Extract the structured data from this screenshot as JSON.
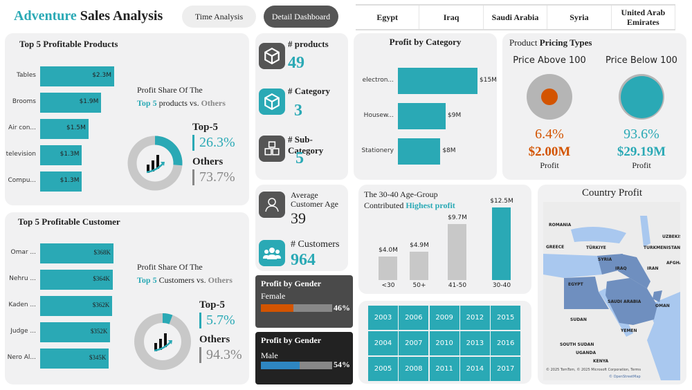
{
  "header": {
    "title_accent": "Adventure",
    "title_rest": "Sales Analysis",
    "nav": [
      "Time Analysis",
      "Detail Dashboard"
    ],
    "active_nav": "Detail Dashboard"
  },
  "country_slicer": [
    "Egypt",
    "Iraq",
    "Saudi Arabia",
    "Syria",
    "United Arab Emirates"
  ],
  "top_products": {
    "title": "Top 5 Profitable Products",
    "items": [
      {
        "label": "Tables",
        "value": 2.3,
        "text": "$2.3M"
      },
      {
        "label": "Brooms",
        "value": 1.9,
        "text": "$1.9M"
      },
      {
        "label": "Air con...",
        "value": 1.5,
        "text": "$1.5M"
      },
      {
        "label": "television",
        "value": 1.3,
        "text": "$1.3M"
      },
      {
        "label": "Compu...",
        "value": 1.3,
        "text": "$1.3M"
      }
    ],
    "share_line1": "Profit Share Of The",
    "share_top": "Top 5",
    "share_mid": "products vs.",
    "share_others": "Others",
    "top_label": "Top-5",
    "top_pct": "26.3%",
    "top_value": 26.3,
    "others_label": "Others",
    "others_pct": "73.7%"
  },
  "top_customers": {
    "title": "Top 5 Profitable Customer",
    "items": [
      {
        "label": "Omar ...",
        "value": 368,
        "text": "$368K"
      },
      {
        "label": "Nehru ...",
        "value": 364,
        "text": "$364K"
      },
      {
        "label": "Kaden ...",
        "value": 362,
        "text": "$362K"
      },
      {
        "label": "Judge ...",
        "value": 352,
        "text": "$352K"
      },
      {
        "label": "Nero Al...",
        "value": 345,
        "text": "$345K"
      }
    ],
    "share_line1": "Profit Share Of The",
    "share_top": "Top 5",
    "share_mid": "Customers vs.",
    "share_others": "Others",
    "top_label": "Top-5",
    "top_pct": "5.7%",
    "top_value": 5.7,
    "others_label": "Others",
    "others_pct": "94.3%"
  },
  "kpis": {
    "products_label": "# products",
    "products": "49",
    "category_label": "# Category",
    "category": "3",
    "subcategory_label": "# Sub-Category",
    "subcategory": "5",
    "age_label1": "Average",
    "age_label2": "Customer Age",
    "age": "39",
    "customers_label": "# Customers",
    "customers": "964"
  },
  "gender": [
    {
      "title": "Profit by Gender",
      "label": "Female",
      "pct": 46,
      "text": "46%",
      "color": "#d35400"
    },
    {
      "title": "Profit by Gender",
      "label": "Male",
      "pct": 54,
      "text": "54%",
      "color": "#2e86c1"
    }
  ],
  "profit_by_category": {
    "title": "Profit by Category",
    "items": [
      {
        "label": "electron...",
        "value": 15,
        "text": "$15M"
      },
      {
        "label": "Housew...",
        "value": 9,
        "text": "$9M"
      },
      {
        "label": "Stationery",
        "value": 8,
        "text": "$8M"
      }
    ]
  },
  "pricing": {
    "title_a": "Product",
    "title_b": "Pricing Types",
    "above": {
      "label": "Price Above 100",
      "pct": "6.4%",
      "value": "$2.00M",
      "sub": "Profit",
      "color": "#d35400"
    },
    "below": {
      "label": "Price Below 100",
      "pct": "93.6%",
      "value": "$29.19M",
      "sub": "Profit",
      "color": "#2aa9b5"
    }
  },
  "age_group": {
    "title1": "The 30-40 Age-Group",
    "title2a": "Contributed",
    "title2b": "Highest profit",
    "items": [
      {
        "label": "<30",
        "value": 4.0,
        "text": "$4.0M"
      },
      {
        "label": "50+",
        "value": 4.9,
        "text": "$4.9M"
      },
      {
        "label": "41-50",
        "value": 9.7,
        "text": "$9.7M"
      },
      {
        "label": "30-40",
        "value": 12.5,
        "text": "$12.5M"
      }
    ]
  },
  "years": [
    [
      "2003",
      "2006",
      "2009",
      "2012",
      "2015"
    ],
    [
      "2004",
      "2007",
      "2010",
      "2013",
      "2016"
    ],
    [
      "2005",
      "2008",
      "2011",
      "2014",
      "2017"
    ]
  ],
  "map": {
    "title": "Country Profit",
    "labels": [
      "ROMANIA",
      "GREECE",
      "TÜRKIYE",
      "TURKMENISTAN",
      "UZBEKIS",
      "SYRIA",
      "IRAQ",
      "IRAN",
      "AFGHA",
      "EGYPT",
      "SAUDI ARABIA",
      "OMAN",
      "SUDAN",
      "YEMEN",
      "SOUTH SUDAN",
      "UGANDA",
      "KENYA"
    ],
    "attribution": "© 2025 TomTom, © 2025 Microsoft Corporation, Terms",
    "osm": "© OpenStreetMap",
    "colors": {
      "highlight": "#6f8fbf",
      "water": "#a9c8ef",
      "land": "#ececec"
    }
  },
  "colors": {
    "accent": "#2aa9b5",
    "gray": "#c8c8c8",
    "dark": "#555555"
  }
}
